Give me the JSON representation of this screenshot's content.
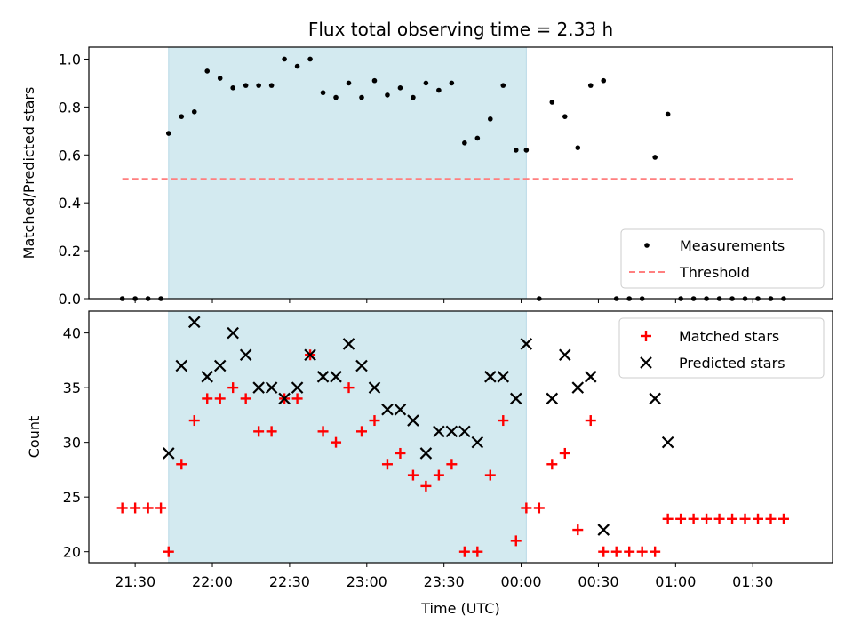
{
  "chart_data": [
    {
      "type": "scatter",
      "title": "Flux total observing time = 2.33 h",
      "xlabel": "",
      "ylabel": "Matched/Predicted stars",
      "xlim": [
        "21:12",
        "02:01"
      ],
      "ylim": [
        0,
        1.05
      ],
      "yticks": [
        "0.0",
        "0.2",
        "0.4",
        "0.6",
        "0.8",
        "1.0"
      ],
      "shaded_span": [
        "21:43",
        "00:02"
      ],
      "threshold": {
        "name": "Threshold",
        "value": 0.5,
        "x": [
          "21:25",
          "01:46"
        ],
        "color": "#ff7f7f"
      },
      "legend": [
        "Measurements",
        "Threshold"
      ],
      "legend_position": "lower right",
      "series": [
        {
          "name": "Measurements",
          "color": "#000000",
          "x": [
            "21:25",
            "21:30",
            "21:35",
            "21:40",
            "21:43",
            "21:48",
            "21:53",
            "21:58",
            "22:03",
            "22:08",
            "22:13",
            "22:18",
            "22:23",
            "22:28",
            "22:33",
            "22:38",
            "22:43",
            "22:48",
            "22:53",
            "22:58",
            "23:03",
            "23:08",
            "23:13",
            "23:18",
            "23:23",
            "23:28",
            "23:33",
            "23:38",
            "23:43",
            "23:48",
            "23:53",
            "23:58",
            "00:02",
            "00:07",
            "00:12",
            "00:17",
            "00:22",
            "00:27",
            "00:32",
            "00:37",
            "00:42",
            "00:47",
            "00:52",
            "00:57",
            "01:02",
            "01:07",
            "01:12",
            "01:17",
            "01:22",
            "01:27",
            "01:32",
            "01:37",
            "01:42"
          ],
          "y": [
            0,
            0,
            0,
            0,
            0.69,
            0.76,
            0.78,
            0.95,
            0.92,
            0.88,
            0.89,
            0.89,
            0.89,
            1.0,
            0.97,
            1.0,
            0.86,
            0.84,
            0.9,
            0.84,
            0.91,
            0.85,
            0.88,
            0.84,
            0.9,
            0.87,
            0.9,
            0.65,
            0.67,
            0.75,
            0.89,
            0.62,
            0.62,
            0,
            0.82,
            0.76,
            0.63,
            0.89,
            0.91,
            0,
            0,
            0,
            0.59,
            0.77,
            0,
            0,
            0,
            0,
            0,
            0,
            0,
            0,
            0
          ]
        }
      ]
    },
    {
      "type": "scatter",
      "title": "",
      "xlabel": "Time (UTC)",
      "ylabel": "Count",
      "xlim": [
        "21:12",
        "02:01"
      ],
      "ylim": [
        19,
        42
      ],
      "xticks": [
        "21:30",
        "22:00",
        "22:30",
        "23:00",
        "23:30",
        "00:00",
        "00:30",
        "01:00",
        "01:30"
      ],
      "yticks": [
        "20",
        "25",
        "30",
        "35",
        "40"
      ],
      "shaded_span": [
        "21:43",
        "00:02"
      ],
      "legend": [
        "Matched stars",
        "Predicted stars"
      ],
      "legend_position": "upper right",
      "series": [
        {
          "name": "Matched stars",
          "marker": "plus",
          "color": "#ff0000",
          "x": [
            "21:25",
            "21:30",
            "21:35",
            "21:40",
            "21:43",
            "21:48",
            "21:53",
            "21:58",
            "22:03",
            "22:08",
            "22:13",
            "22:18",
            "22:23",
            "22:28",
            "22:33",
            "22:38",
            "22:43",
            "22:48",
            "22:53",
            "22:58",
            "23:03",
            "23:08",
            "23:13",
            "23:18",
            "23:23",
            "23:28",
            "23:33",
            "23:38",
            "23:43",
            "23:48",
            "23:53",
            "23:58",
            "00:02",
            "00:07",
            "00:12",
            "00:17",
            "00:22",
            "00:27",
            "00:32",
            "00:37",
            "00:42",
            "00:47",
            "00:52",
            "00:57",
            "01:02",
            "01:07",
            "01:12",
            "01:17",
            "01:22",
            "01:27",
            "01:32",
            "01:37",
            "01:42"
          ],
          "y": [
            24,
            24,
            24,
            24,
            20,
            28,
            32,
            34,
            34,
            35,
            34,
            31,
            31,
            34,
            34,
            38,
            31,
            30,
            35,
            31,
            32,
            28,
            29,
            27,
            26,
            27,
            28,
            20,
            20,
            27,
            32,
            21,
            24,
            24,
            28,
            29,
            22,
            32,
            20,
            20,
            20,
            20,
            20,
            23,
            23,
            23,
            23,
            23,
            23,
            23,
            23,
            23,
            23
          ]
        },
        {
          "name": "Predicted stars",
          "marker": "x",
          "color": "#000000",
          "x": [
            "21:43",
            "21:48",
            "21:53",
            "21:58",
            "22:03",
            "22:08",
            "22:13",
            "22:18",
            "22:23",
            "22:28",
            "22:33",
            "22:38",
            "22:43",
            "22:48",
            "22:53",
            "22:58",
            "23:03",
            "23:08",
            "23:13",
            "23:18",
            "23:23",
            "23:28",
            "23:33",
            "23:38",
            "23:43",
            "23:48",
            "23:53",
            "23:58",
            "00:02",
            "00:12",
            "00:17",
            "00:22",
            "00:27",
            "00:32",
            "00:52",
            "00:57"
          ],
          "y": [
            29,
            37,
            41,
            36,
            37,
            40,
            38,
            35,
            35,
            34,
            35,
            38,
            36,
            36,
            39,
            37,
            35,
            33,
            33,
            32,
            29,
            31,
            31,
            31,
            30,
            36,
            36,
            34,
            39,
            34,
            38,
            35,
            36,
            22,
            34,
            30
          ]
        }
      ]
    }
  ],
  "colors": {
    "shade": "#d3eaf0",
    "shade_edge": "#b8d9e6",
    "matched": "#ff0000",
    "predicted": "#000000",
    "measurement": "#000000",
    "threshold": "#ff7f7f"
  }
}
